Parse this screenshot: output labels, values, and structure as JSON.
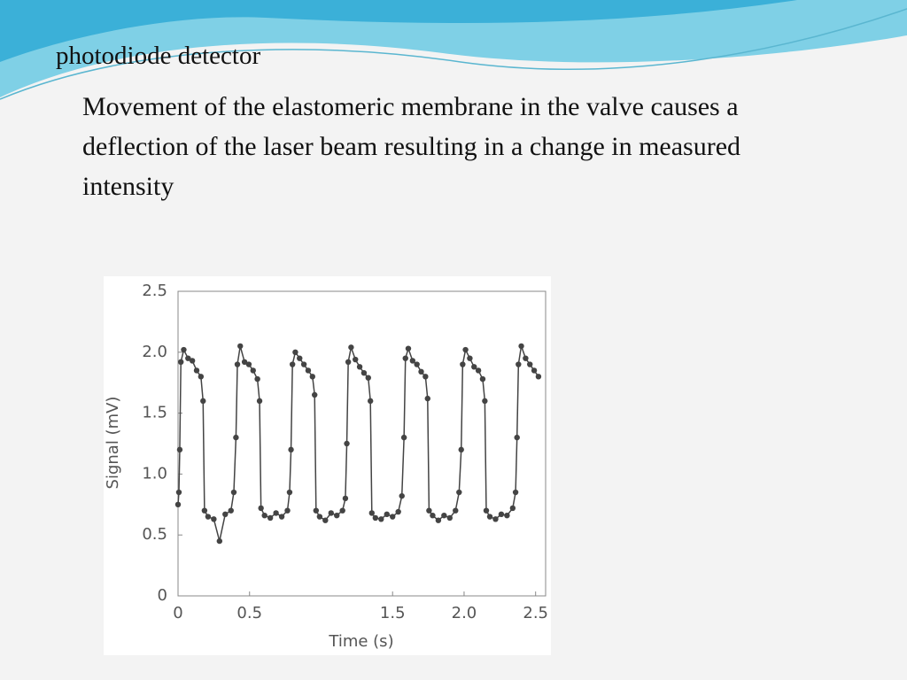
{
  "slide": {
    "heading": "photodiode detector",
    "body": "Movement of the elastomeric membrane in the valve causes a deflection of the laser beam resulting in a change in measured intensity"
  },
  "chart_data": {
    "type": "line",
    "xlabel": "Time (s)",
    "ylabel": "Signal (mV)",
    "color": "#444444",
    "xlim": [
      0,
      2.57
    ],
    "ylim": [
      0,
      2.5
    ],
    "xticks": [
      0,
      0.5,
      1.5,
      {
        "value": 2.0,
        "label": "2.0"
      },
      2.5
    ],
    "yticks": [
      0,
      0.5,
      {
        "value": 1.0,
        "label": "1.0"
      },
      1.5,
      {
        "value": 2.0,
        "label": "2.0"
      },
      2.5
    ],
    "x": [
      0,
      0.006,
      0.012,
      0.02,
      0.04,
      0.07,
      0.1,
      0.13,
      0.16,
      0.175,
      0.185,
      0.21,
      0.25,
      0.29,
      0.33,
      0.37,
      0.39,
      0.405,
      0.415,
      0.435,
      0.465,
      0.495,
      0.525,
      0.555,
      0.57,
      0.58,
      0.605,
      0.645,
      0.685,
      0.725,
      0.765,
      0.78,
      0.79,
      0.8,
      0.82,
      0.85,
      0.88,
      0.91,
      0.94,
      0.955,
      0.965,
      0.99,
      1.03,
      1.07,
      1.11,
      1.15,
      1.17,
      1.18,
      1.19,
      1.21,
      1.24,
      1.27,
      1.3,
      1.33,
      1.345,
      1.355,
      1.38,
      1.42,
      1.46,
      1.5,
      1.54,
      1.565,
      1.58,
      1.59,
      1.61,
      1.64,
      1.67,
      1.7,
      1.73,
      1.745,
      1.755,
      1.78,
      1.82,
      1.86,
      1.9,
      1.94,
      1.965,
      1.98,
      1.99,
      2.01,
      2.04,
      2.07,
      2.1,
      2.13,
      2.145,
      2.155,
      2.18,
      2.22,
      2.26,
      2.3,
      2.34,
      2.36,
      2.37,
      2.38,
      2.4,
      2.43,
      2.46,
      2.49,
      2.52
    ],
    "values": [
      0.75,
      0.85,
      1.2,
      1.92,
      2.02,
      1.95,
      1.93,
      1.85,
      1.8,
      1.6,
      0.7,
      0.65,
      0.63,
      0.45,
      0.67,
      0.7,
      0.85,
      1.3,
      1.9,
      2.05,
      1.92,
      1.9,
      1.85,
      1.78,
      1.6,
      0.72,
      0.66,
      0.64,
      0.68,
      0.65,
      0.7,
      0.85,
      1.2,
      1.9,
      2.0,
      1.95,
      1.9,
      1.85,
      1.8,
      1.65,
      0.7,
      0.65,
      0.62,
      0.68,
      0.66,
      0.7,
      0.8,
      1.25,
      1.92,
      2.04,
      1.94,
      1.88,
      1.83,
      1.79,
      1.6,
      0.68,
      0.64,
      0.63,
      0.67,
      0.65,
      0.69,
      0.82,
      1.3,
      1.95,
      2.03,
      1.93,
      1.9,
      1.84,
      1.8,
      1.62,
      0.7,
      0.66,
      0.62,
      0.66,
      0.64,
      0.7,
      0.85,
      1.2,
      1.9,
      2.02,
      1.95,
      1.88,
      1.85,
      1.78,
      1.6,
      0.7,
      0.65,
      0.63,
      0.67,
      0.66,
      0.72,
      0.85,
      1.3,
      1.9,
      2.05,
      1.95,
      1.9,
      1.85,
      1.8
    ]
  }
}
